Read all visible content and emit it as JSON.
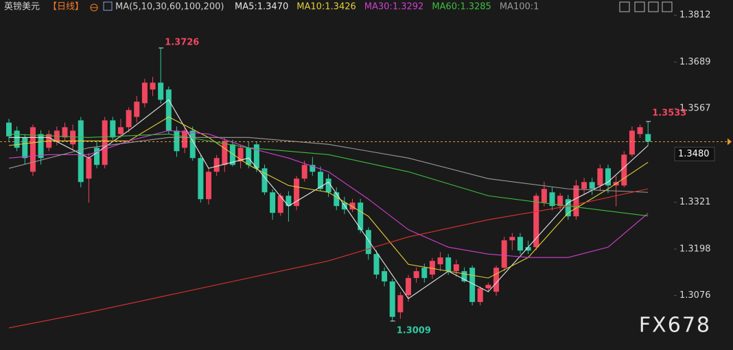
{
  "chart_data": {
    "type": "candlestick",
    "title": "英镑美元",
    "period": "【日线】",
    "indicator": "MA(5,10,30,60,100,200)",
    "watermark": "FX678",
    "up_color": "#f0465e",
    "down_color": "#2fc9a2",
    "ylim": [
      1.2933,
      1.3852
    ],
    "yticks": [
      1.3812,
      1.3689,
      1.3567,
      1.3321,
      1.3198,
      1.3076
    ],
    "last_price": {
      "value": 1.348,
      "label": "1.3480"
    },
    "open": [
      1.353,
      1.3509,
      1.3491,
      1.3401,
      1.35,
      1.3464,
      1.3482,
      1.3491,
      1.3473,
      1.3536,
      1.3383,
      1.3464,
      1.3419,
      1.3536,
      1.35,
      1.3518,
      1.3545,
      1.3581,
      1.3617,
      1.3635,
      1.3617,
      1.3509,
      1.3464,
      1.3509,
      1.3437,
      1.3329,
      1.3401,
      1.3419,
      1.3473,
      1.3428,
      1.3464,
      1.3473,
      1.341,
      1.3347,
      1.3293,
      1.3338,
      1.3311,
      1.3383,
      1.3419,
      1.3401,
      1.3383,
      1.3347,
      1.332,
      1.3302,
      1.332,
      1.3248,
      1.3185,
      1.314,
      1.3113,
      1.3032,
      1.3077,
      1.3122,
      1.3149,
      1.3131,
      1.3158,
      1.3176,
      1.314,
      1.314,
      1.3149,
      1.3059,
      1.3095,
      1.3086,
      1.3149,
      1.3221,
      1.323,
      1.3203,
      1.3203,
      1.332,
      1.3347,
      1.3311,
      1.3329,
      1.3284,
      1.3356,
      1.3374,
      1.3365,
      1.341,
      1.3365,
      1.3365,
      1.3446,
      1.35,
      1.35
    ],
    "high": [
      1.354,
      1.352,
      1.35,
      1.3525,
      1.351,
      1.351,
      1.352,
      1.353,
      1.3525,
      1.3545,
      1.345,
      1.348,
      1.3545,
      1.3545,
      1.354,
      1.357,
      1.36,
      1.3645,
      1.365,
      1.3726,
      1.3625,
      1.352,
      1.3515,
      1.352,
      1.3445,
      1.341,
      1.3445,
      1.349,
      1.3485,
      1.347,
      1.348,
      1.348,
      1.342,
      1.3355,
      1.3345,
      1.335,
      1.339,
      1.343,
      1.344,
      1.3415,
      1.3395,
      1.336,
      1.3335,
      1.333,
      1.333,
      1.3255,
      1.3195,
      1.315,
      1.312,
      1.3085,
      1.313,
      1.315,
      1.316,
      1.3175,
      1.319,
      1.3185,
      1.317,
      1.315,
      1.3155,
      1.31,
      1.311,
      1.3155,
      1.323,
      1.324,
      1.324,
      1.322,
      1.3345,
      1.3375,
      1.336,
      1.3345,
      1.334,
      1.338,
      1.3385,
      1.3385,
      1.342,
      1.342,
      1.339,
      1.3455,
      1.352,
      1.3525,
      1.3533
    ],
    "low": [
      1.348,
      1.3455,
      1.342,
      1.339,
      1.342,
      1.3455,
      1.347,
      1.348,
      1.346,
      1.336,
      1.332,
      1.341,
      1.341,
      1.3485,
      1.349,
      1.3505,
      1.353,
      1.357,
      1.36,
      1.358,
      1.35,
      1.344,
      1.345,
      1.343,
      1.332,
      1.3315,
      1.339,
      1.34,
      1.3415,
      1.341,
      1.341,
      1.34,
      1.334,
      1.3275,
      1.3285,
      1.327,
      1.33,
      1.3375,
      1.339,
      1.335,
      1.3335,
      1.33,
      1.329,
      1.3295,
      1.324,
      1.317,
      1.312,
      1.31,
      1.3009,
      1.3015,
      1.306,
      1.311,
      1.311,
      1.312,
      1.314,
      1.313,
      1.3125,
      1.311,
      1.305,
      1.305,
      1.3085,
      1.3075,
      1.314,
      1.3195,
      1.3185,
      1.3185,
      1.3195,
      1.331,
      1.33,
      1.33,
      1.3275,
      1.3275,
      1.334,
      1.334,
      1.335,
      1.3345,
      1.331,
      1.336,
      1.344,
      1.349,
      1.347
    ],
    "close": [
      1.3494,
      1.3464,
      1.3437,
      1.3518,
      1.3437,
      1.35,
      1.3509,
      1.3518,
      1.3509,
      1.3374,
      1.3437,
      1.3419,
      1.3536,
      1.3491,
      1.3518,
      1.3563,
      1.3585,
      1.3635,
      1.3635,
      1.359,
      1.3509,
      1.3455,
      1.3509,
      1.3437,
      1.3329,
      1.3401,
      1.3437,
      1.3482,
      1.3419,
      1.3464,
      1.3419,
      1.341,
      1.3347,
      1.3293,
      1.3338,
      1.3311,
      1.3383,
      1.3419,
      1.3401,
      1.3356,
      1.3347,
      1.3311,
      1.3302,
      1.332,
      1.3248,
      1.3185,
      1.3131,
      1.3113,
      1.302,
      1.3077,
      1.3122,
      1.314,
      1.3122,
      1.3167,
      1.3176,
      1.314,
      1.3158,
      1.3113,
      1.3059,
      1.3095,
      1.3104,
      1.3149,
      1.3221,
      1.323,
      1.3194,
      1.3194,
      1.3338,
      1.3356,
      1.3311,
      1.3338,
      1.3284,
      1.3365,
      1.3374,
      1.3356,
      1.341,
      1.3365,
      1.3374,
      1.3446,
      1.3509,
      1.3518,
      1.348
    ],
    "series": [
      {
        "label": "MA5:1.3470",
        "color": "#e8e8e8",
        "x": [
          0,
          5,
          10,
          15,
          20,
          25,
          30,
          35,
          40,
          45,
          50,
          55,
          60,
          65,
          70,
          75,
          80
        ],
        "values": [
          1.3491,
          1.3491,
          1.3437,
          1.3509,
          1.359,
          1.341,
          1.3437,
          1.3311,
          1.3374,
          1.3221,
          1.3068,
          1.314,
          1.3086,
          1.3203,
          1.332,
          1.3374,
          1.347
        ]
      },
      {
        "label": "MA10:1.3426",
        "color": "#e3cf3a",
        "x": [
          0,
          5,
          10,
          15,
          20,
          25,
          30,
          35,
          40,
          45,
          50,
          55,
          60,
          65,
          70,
          75,
          80
        ],
        "values": [
          1.347,
          1.3482,
          1.3482,
          1.3482,
          1.3545,
          1.3491,
          1.3419,
          1.3365,
          1.3347,
          1.3284,
          1.3158,
          1.314,
          1.3122,
          1.3176,
          1.3293,
          1.3356,
          1.3426
        ]
      },
      {
        "label": "MA30:1.3292",
        "color": "#d23fd2",
        "x": [
          0,
          5,
          10,
          15,
          20,
          25,
          30,
          35,
          40,
          45,
          50,
          55,
          60,
          65,
          70,
          75,
          80
        ],
        "values": [
          1.3437,
          1.3446,
          1.3446,
          1.3482,
          1.3509,
          1.35,
          1.3464,
          1.3437,
          1.3401,
          1.3329,
          1.3249,
          1.3203,
          1.3185,
          1.3176,
          1.3176,
          1.3203,
          1.3292
        ]
      },
      {
        "label": "MA60:1.3285",
        "color": "#3ebf3e",
        "x": [
          0,
          10,
          20,
          30,
          40,
          50,
          60,
          70,
          80
        ],
        "values": [
          1.35,
          1.3491,
          1.35,
          1.3464,
          1.3446,
          1.3401,
          1.3338,
          1.3311,
          1.3285
        ]
      },
      {
        "label": "MA100:1",
        "color": "#9a9a9a",
        "x": [
          0,
          10,
          20,
          30,
          40,
          50,
          60,
          70,
          80
        ],
        "values": [
          1.341,
          1.3464,
          1.3491,
          1.3491,
          1.3473,
          1.3437,
          1.3383,
          1.3356,
          1.3347
        ]
      },
      {
        "color": "#e03232",
        "x": [
          0,
          10,
          20,
          30,
          40,
          50,
          60,
          70,
          80
        ],
        "values": [
          1.2991,
          1.3032,
          1.3077,
          1.3122,
          1.3167,
          1.323,
          1.3275,
          1.3311,
          1.3356
        ]
      }
    ]
  }
}
